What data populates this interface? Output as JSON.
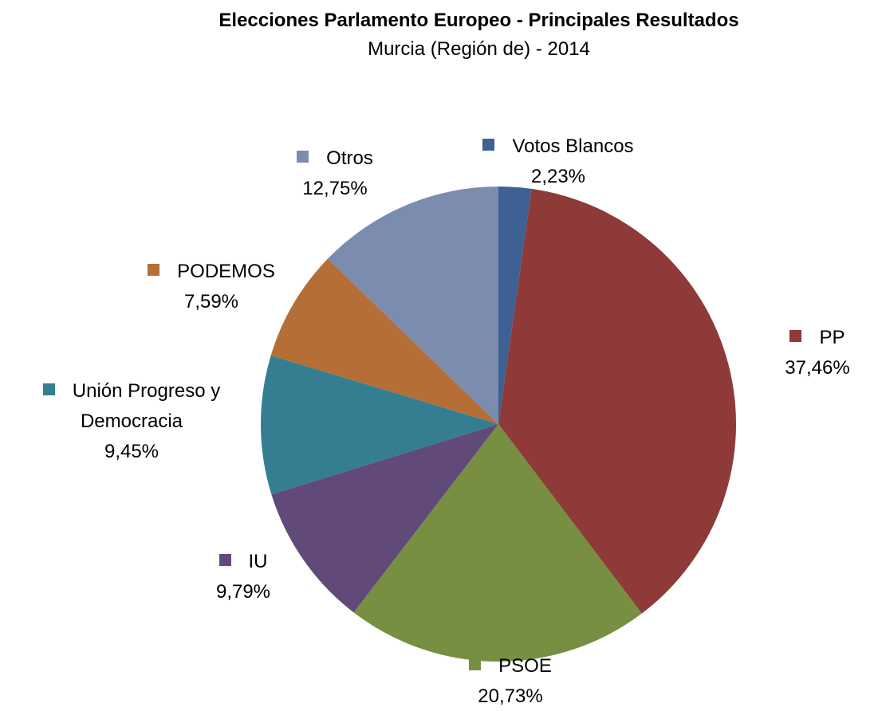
{
  "chart_data": {
    "type": "pie",
    "title": "Elecciones Parlamento Europeo - Principales Resultados",
    "subtitle": "Murcia (Región de) - 2014",
    "categories": [
      "Votos Blancos",
      "PP",
      "PSOE",
      "IU",
      "Unión Progreso y Democracia",
      "PODEMOS",
      "Otros"
    ],
    "values": [
      2.23,
      37.46,
      20.73,
      9.79,
      9.45,
      7.59,
      12.75
    ],
    "value_labels": [
      "2,23%",
      "37,46%",
      "20,73%",
      "9,79%",
      "9,45%",
      "7,59%",
      "12,75%"
    ],
    "colors": [
      "#3d6192",
      "#8e3a38",
      "#768f40",
      "#614a79",
      "#357e92",
      "#b56e35",
      "#7b8cae"
    ]
  }
}
